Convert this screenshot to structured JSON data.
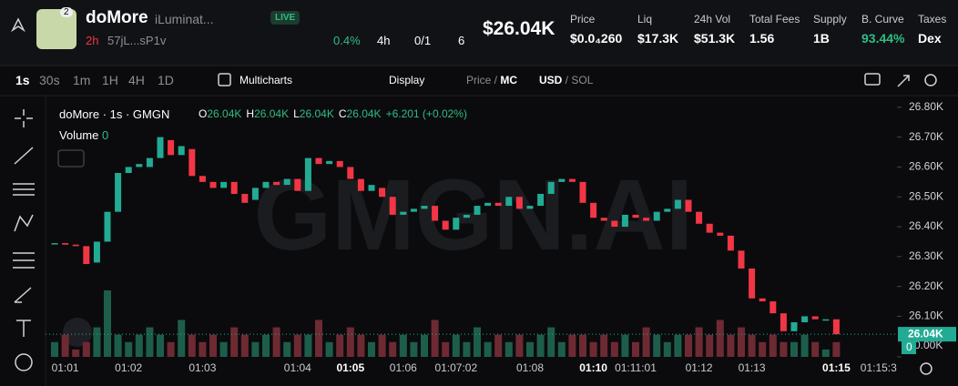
{
  "header": {
    "name": "doMore",
    "subtitle": "iLuminat...",
    "badge": "2",
    "live": "LIVE",
    "age": "2h",
    "address": "57jL...sP1v",
    "holders_change": "0.4%",
    "period": "4h",
    "ratio": "0/1",
    "views": "6",
    "market_cap": "$26.04K",
    "stats": [
      {
        "label": "Price",
        "value": "$0.0₄260"
      },
      {
        "label": "Liq",
        "value": "$17.3K"
      },
      {
        "label": "24h Vol",
        "value": "$51.3K"
      },
      {
        "label": "Total Fees",
        "value": "1.56"
      },
      {
        "label": "Supply",
        "value": "1B"
      },
      {
        "label": "B. Curve",
        "value": "93.44%"
      },
      {
        "label": "Taxes",
        "value": "Dex"
      }
    ]
  },
  "toolbar": {
    "intervals": [
      "1s",
      "30s",
      "1m",
      "1H",
      "4H",
      "1D"
    ],
    "multicharts": "Multicharts",
    "display": "Display",
    "price": "Price",
    "mc": "MC",
    "usd": "USD",
    "sol": "SOL"
  },
  "chart_data": {
    "type": "candlestick",
    "title": "doMore · 1s · GMGN",
    "ohlc": [
      {
        "key": "O",
        "value": "26.04K"
      },
      {
        "key": "H",
        "value": "26.04K"
      },
      {
        "key": "L",
        "value": "26.04K"
      },
      {
        "key": "C",
        "value": "26.04K"
      }
    ],
    "change": "+6.201 (+0.02%)",
    "volume_label": "Volume",
    "volume_value": "0",
    "watermark": "GMGN.AI",
    "last_price": "26.04K",
    "last_volume": "0",
    "up_color": "#22ab94",
    "down_color": "#f23645",
    "categories": [
      null,
      "01:01",
      null,
      null,
      null,
      null,
      null,
      "01:02",
      null,
      null,
      null,
      null,
      null,
      null,
      "01:03",
      null,
      null,
      null,
      null,
      null,
      null,
      null,
      null,
      "01:04",
      null,
      null,
      null,
      null,
      "01:05",
      null,
      null,
      null,
      null,
      "01:06",
      null,
      null,
      null,
      null,
      "01:07:02",
      null,
      null,
      null,
      null,
      null,
      null,
      "01:08",
      null,
      null,
      null,
      null,
      null,
      "01:10",
      null,
      null,
      null,
      "01:11:01",
      null,
      null,
      null,
      null,
      null,
      "01:12",
      null,
      null,
      null,
      null,
      "01:13",
      null,
      null,
      null,
      null,
      null,
      null,
      null,
      "01:15",
      null,
      null,
      null,
      "01:15:3"
    ],
    "open": [
      26.345,
      26.345,
      26.34,
      26.335,
      26.28,
      26.35,
      26.45,
      26.58,
      26.6,
      26.6,
      26.63,
      26.69,
      26.64,
      26.66,
      26.57,
      26.55,
      26.53,
      26.55,
      26.51,
      26.49,
      26.53,
      26.55,
      26.54,
      26.56,
      26.52,
      26.63,
      26.61,
      26.62,
      26.6,
      26.56,
      26.52,
      26.53,
      26.5,
      26.44,
      26.45,
      26.46,
      26.47,
      26.42,
      26.39,
      26.43,
      26.44,
      26.47,
      26.48,
      26.47,
      26.5,
      26.46,
      26.47,
      26.51,
      26.55,
      26.56,
      26.55,
      26.48,
      26.43,
      26.42,
      26.4,
      26.44,
      26.43,
      26.42,
      26.45,
      26.46,
      26.49,
      26.45,
      26.41,
      26.38,
      26.37,
      26.32,
      26.26,
      26.16,
      26.15,
      26.11,
      26.05,
      26.08,
      26.1,
      26.09,
      26.09,
      null,
      null,
      null,
      null
    ],
    "close": [
      26.345,
      26.34,
      26.335,
      26.275,
      26.35,
      26.45,
      26.58,
      26.6,
      26.61,
      26.63,
      26.7,
      26.64,
      26.67,
      26.57,
      26.55,
      26.53,
      26.55,
      26.51,
      26.48,
      26.53,
      26.55,
      26.54,
      26.56,
      26.52,
      26.63,
      26.61,
      26.62,
      26.6,
      26.56,
      26.52,
      26.54,
      26.5,
      26.44,
      26.45,
      26.46,
      26.47,
      26.42,
      26.39,
      26.43,
      26.44,
      26.47,
      26.48,
      26.47,
      26.5,
      26.46,
      26.47,
      26.51,
      26.55,
      26.56,
      26.55,
      26.48,
      26.43,
      26.42,
      26.4,
      26.44,
      26.43,
      26.42,
      26.45,
      26.46,
      26.49,
      26.45,
      26.41,
      26.38,
      26.37,
      26.32,
      26.26,
      26.16,
      26.15,
      26.11,
      26.05,
      26.08,
      26.1,
      26.09,
      26.09,
      26.04,
      null,
      null,
      null,
      null
    ],
    "volume": [
      0.02,
      0.03,
      0.01,
      0.02,
      0.04,
      0.09,
      0.03,
      0.02,
      0.03,
      0.04,
      0.03,
      0.02,
      0.05,
      0.03,
      0.02,
      0.03,
      0.02,
      0.04,
      0.03,
      0.02,
      0.03,
      0.04,
      0.02,
      0.03,
      0.03,
      0.05,
      0.02,
      0.03,
      0.04,
      0.03,
      0.02,
      0.03,
      0.02,
      0.03,
      0.02,
      0.03,
      0.05,
      0.02,
      0.03,
      0.02,
      0.04,
      0.02,
      0.03,
      0.02,
      0.03,
      0.02,
      0.03,
      0.04,
      0.02,
      0.03,
      0.03,
      0.02,
      0.03,
      0.02,
      0.03,
      0.02,
      0.04,
      0.03,
      0.02,
      0.03,
      0.03,
      0.04,
      0.03,
      0.05,
      0.03,
      0.04,
      0.03,
      0.02,
      0.03,
      0.02,
      0.02,
      0.03,
      0.02,
      0.01,
      0.02,
      null,
      null,
      null,
      null
    ],
    "ylim": [
      25.955,
      26.83
    ],
    "yticks": [
      {
        "value": 26.8,
        "label": "26.80K"
      },
      {
        "value": 26.7,
        "label": "26.70K"
      },
      {
        "value": 26.6,
        "label": "26.60K"
      },
      {
        "value": 26.5,
        "label": "26.50K"
      },
      {
        "value": 26.4,
        "label": "26.40K"
      },
      {
        "value": 26.3,
        "label": "26.30K"
      },
      {
        "value": 26.2,
        "label": "26.20K"
      },
      {
        "value": 26.1,
        "label": "26.10K"
      }
    ],
    "y2lim": [
      0,
      0.35
    ],
    "y2ticks": [
      {
        "value": 0,
        "label": "0.00K"
      }
    ]
  }
}
